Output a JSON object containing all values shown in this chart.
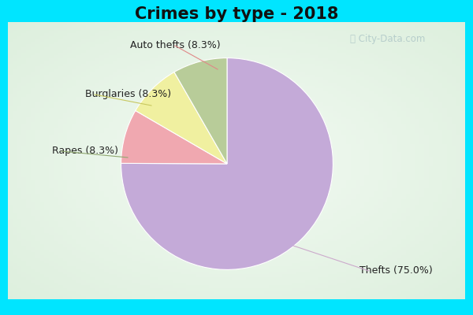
{
  "title": "Crimes by type - 2018",
  "slices": [
    {
      "label": "Thefts (75.0%)",
      "value": 75.0,
      "color": "#c4aad8"
    },
    {
      "label": "Auto thefts (8.3%)",
      "value": 8.3,
      "color": "#f0a8b0"
    },
    {
      "label": "Burglaries (8.3%)",
      "value": 8.3,
      "color": "#f0f0a0"
    },
    {
      "label": "Rapes (8.3%)",
      "value": 8.3,
      "color": "#b8cc99"
    }
  ],
  "background_cyan": "#00e5ff",
  "background_center": "#e8f5e8",
  "title_fontsize": 15,
  "label_fontsize": 9,
  "watermark_text": "City-Data.com",
  "startangle": 90,
  "border_width": 10
}
